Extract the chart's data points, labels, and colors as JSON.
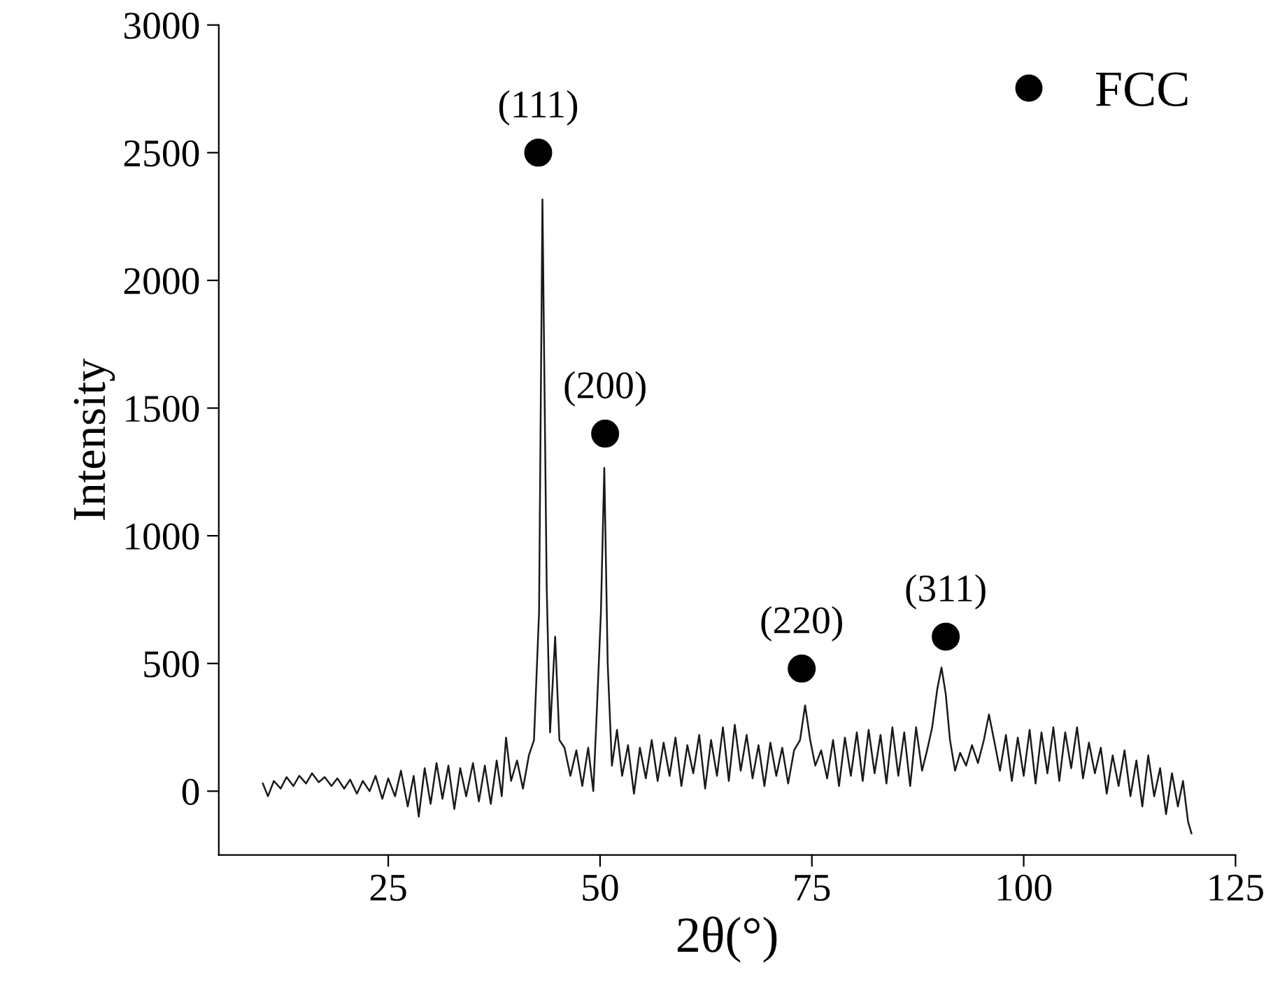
{
  "chart_data": {
    "type": "line",
    "xlabel": "2θ(°)",
    "ylabel": "Intensity",
    "xlim": [
      5,
      125
    ],
    "xticks": [
      25,
      50,
      75,
      100,
      125
    ],
    "ylim": [
      -250,
      3000
    ],
    "yticks": [
      0,
      500,
      1000,
      1500,
      2000,
      2500,
      3000
    ],
    "grid": false,
    "legend": "top right",
    "series": [
      {
        "color": "#1a1a1a",
        "x": [
          10.2,
          10.8,
          11.5,
          12.3,
          13,
          13.8,
          14.5,
          15.3,
          16,
          16.8,
          17.5,
          18.3,
          19,
          19.8,
          20.5,
          21.3,
          22,
          22.8,
          23.5,
          24.3,
          25,
          25.8,
          26.5,
          27.3,
          28,
          28.6,
          29.3,
          30,
          30.7,
          31.4,
          32.1,
          32.8,
          33.5,
          34.2,
          35,
          35.7,
          36.4,
          37.1,
          37.8,
          38.4,
          38.9,
          39.5,
          40.2,
          40.9,
          41.6,
          42.2,
          42.8,
          43.2,
          43.7,
          44.1,
          44.7,
          45.2,
          45.8,
          46.5,
          47.2,
          47.9,
          48.6,
          49.2,
          49.6,
          50.1,
          50.5,
          50.9,
          51.4,
          52,
          52.6,
          53.3,
          54,
          54.7,
          55.4,
          56.1,
          56.8,
          57.5,
          58.2,
          58.9,
          59.6,
          60.3,
          61,
          61.7,
          62.4,
          63.1,
          63.8,
          64.5,
          65.2,
          65.9,
          66.6,
          67.3,
          68,
          68.7,
          69.4,
          70.1,
          70.8,
          71.5,
          72.2,
          72.9,
          73.6,
          74.2,
          74.8,
          75.4,
          76.1,
          76.8,
          77.5,
          78.2,
          78.9,
          79.6,
          80.3,
          81,
          81.7,
          82.4,
          83.1,
          83.8,
          84.5,
          85.2,
          85.9,
          86.6,
          87.3,
          88,
          88.6,
          89.2,
          89.8,
          90.3,
          90.8,
          91.3,
          91.9,
          92.5,
          93.2,
          93.9,
          94.6,
          95.3,
          95.9,
          96.5,
          97.2,
          97.9,
          98.6,
          99.3,
          100,
          100.7,
          101.4,
          102.1,
          102.8,
          103.5,
          104.2,
          104.9,
          105.6,
          106.3,
          107,
          107.7,
          108.4,
          109.1,
          109.8,
          110.5,
          111.2,
          111.9,
          112.6,
          113.3,
          114,
          114.7,
          115.4,
          116.1,
          116.8,
          117.5,
          118.2,
          118.8,
          119.4,
          119.8
        ],
        "values": [
          30,
          -20,
          40,
          10,
          55,
          20,
          60,
          30,
          70,
          35,
          55,
          20,
          50,
          10,
          45,
          -10,
          40,
          0,
          60,
          -30,
          50,
          -20,
          80,
          -60,
          60,
          -100,
          90,
          -50,
          110,
          -30,
          100,
          -70,
          90,
          -20,
          110,
          -40,
          100,
          -50,
          120,
          -20,
          210,
          40,
          120,
          10,
          140,
          200,
          700,
          2317,
          800,
          230,
          605,
          200,
          170,
          60,
          160,
          20,
          170,
          0,
          300,
          700,
          1266,
          500,
          100,
          240,
          60,
          180,
          -10,
          170,
          50,
          200,
          40,
          190,
          60,
          210,
          20,
          180,
          70,
          220,
          10,
          200,
          60,
          250,
          40,
          260,
          80,
          220,
          50,
          180,
          20,
          190,
          60,
          170,
          30,
          160,
          200,
          336,
          200,
          100,
          160,
          50,
          200,
          20,
          210,
          60,
          230,
          40,
          240,
          70,
          220,
          30,
          250,
          60,
          230,
          20,
          250,
          80,
          160,
          250,
          400,
          484,
          380,
          200,
          80,
          150,
          100,
          180,
          110,
          200,
          300,
          200,
          80,
          220,
          40,
          210,
          60,
          240,
          30,
          230,
          70,
          250,
          40,
          230,
          90,
          250,
          50,
          190,
          70,
          170,
          -10,
          140,
          20,
          160,
          -20,
          120,
          -60,
          140,
          -20,
          90,
          -90,
          70,
          -60,
          40,
          -120,
          -165
        ]
      },
      {
        "type": "scatter",
        "name": "FCC",
        "color": "#000000",
        "marker": "circle",
        "x": [
          42.7,
          50.6,
          73.8,
          90.8
        ],
        "values": [
          2500,
          1400,
          480,
          605
        ]
      }
    ],
    "annotations": [
      {
        "text": "(111)",
        "x": 42.7,
        "y": 2500
      },
      {
        "text": "(200)",
        "x": 50.6,
        "y": 1400
      },
      {
        "text": "(220)",
        "x": 73.8,
        "y": 480
      },
      {
        "text": "(311)",
        "x": 90.8,
        "y": 605
      }
    ]
  }
}
